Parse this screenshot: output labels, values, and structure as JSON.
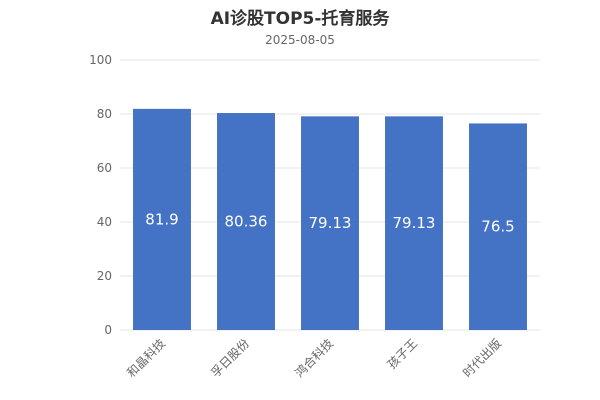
{
  "chart_data": {
    "type": "bar",
    "title": "AI诊股TOP5-托育服务",
    "subtitle": "2025-08-05",
    "categories": [
      "和晶科技",
      "孚日股份",
      "鸿合科技",
      "孩子王",
      "时代出版"
    ],
    "values": [
      81.9,
      80.36,
      79.13,
      79.13,
      76.5
    ],
    "value_labels": [
      "81.9",
      "80.36",
      "79.13",
      "79.13",
      "76.5"
    ],
    "ylim": [
      0,
      100
    ],
    "yticks": [
      0,
      20,
      40,
      60,
      80,
      100
    ],
    "xlabel": "",
    "ylabel": "",
    "grid": true,
    "legend": "none",
    "colors": {
      "bar": "#4472C4",
      "grid": "#e6e6e6",
      "axis_text": "#666666",
      "title": "#333333"
    }
  }
}
